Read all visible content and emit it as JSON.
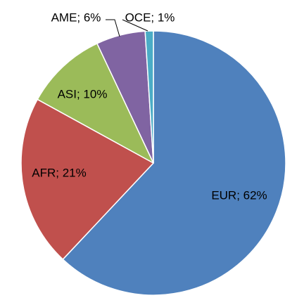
{
  "chart_data": {
    "type": "pie",
    "title": "",
    "start_angle_deg": 0,
    "direction": "clockwise",
    "slices": [
      {
        "label": "EUR; 62%",
        "category": "EUR",
        "value": 62,
        "color": "#4F81BD"
      },
      {
        "label": "AFR; 21%",
        "category": "AFR",
        "value": 21,
        "color": "#C0504D"
      },
      {
        "label": "ASI; 10%",
        "category": "ASI",
        "value": 10,
        "color": "#9BBB59"
      },
      {
        "label": "AME; 6%",
        "category": "AME",
        "value": 6,
        "color": "#8064A2"
      },
      {
        "label": "OCE; 1%",
        "category": "OCE",
        "value": 1,
        "color": "#4BACC6"
      }
    ],
    "legend": "none",
    "label_style": "category; percent",
    "slice_border_color": "#ffffff"
  }
}
